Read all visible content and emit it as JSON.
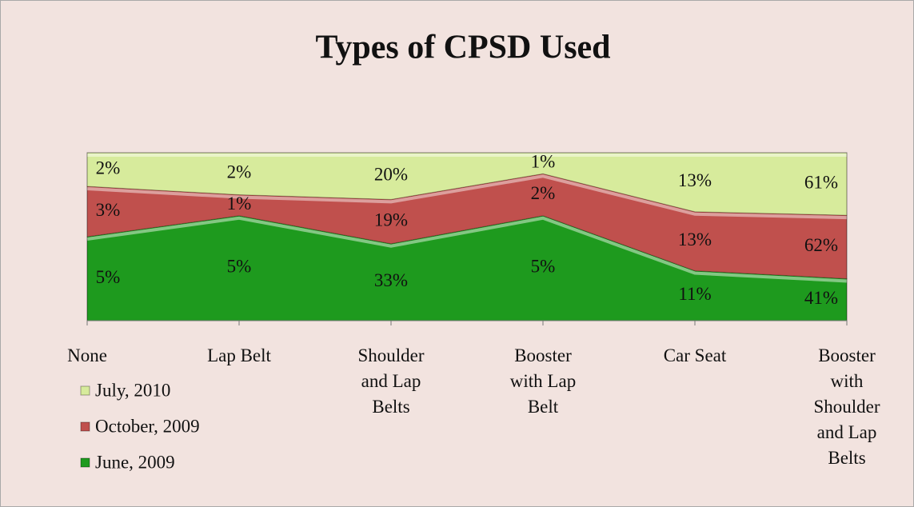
{
  "chart_data": {
    "type": "area",
    "stacked": "percent",
    "title": "Types of CPSD Used",
    "categories": [
      "None",
      "Lap Belt",
      "Shoulder and Lap Belts",
      "Booster with Lap Belt",
      "Car Seat",
      "Booster with Shoulder and Lap Belts"
    ],
    "series": [
      {
        "name": "June, 2009",
        "color": "#1e9a1e",
        "values": [
          5,
          5,
          33,
          5,
          11,
          41
        ],
        "value_labels": [
          "5%",
          "5%",
          "33%",
          "5%",
          "11%",
          "41%"
        ]
      },
      {
        "name": "October, 2009",
        "color": "#c0504d",
        "values": [
          3,
          1,
          19,
          2,
          13,
          62
        ],
        "value_labels": [
          "3%",
          "1%",
          "19%",
          "2%",
          "13%",
          "62%"
        ]
      },
      {
        "name": "July, 2010",
        "color": "#d7eb9c",
        "values": [
          2,
          2,
          20,
          1,
          13,
          61
        ],
        "value_labels": [
          "2%",
          "2%",
          "20%",
          "1%",
          "13%",
          "61%"
        ]
      }
    ],
    "legend": "bottom-left"
  }
}
